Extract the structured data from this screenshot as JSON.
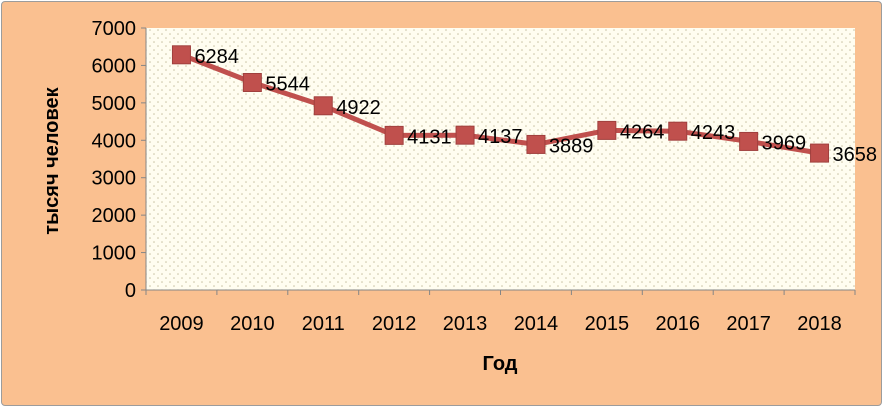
{
  "chart_data": {
    "type": "line",
    "title": "",
    "xlabel": "Год",
    "ylabel": "тысяч человек",
    "categories": [
      "2009",
      "2010",
      "2011",
      "2012",
      "2013",
      "2014",
      "2015",
      "2016",
      "2017",
      "2018"
    ],
    "series": [
      {
        "values": [
          6284,
          5544,
          4922,
          4131,
          4137,
          3889,
          4264,
          4243,
          3969,
          3658
        ],
        "data_labels": [
          "6284",
          "5544",
          "4922",
          "4131",
          "4137",
          "3889",
          "4264",
          "4243",
          "3969",
          "3658"
        ]
      }
    ],
    "ylim": [
      0,
      7000
    ],
    "yticks": [
      "0",
      "1000",
      "2000",
      "3000",
      "4000",
      "5000",
      "6000",
      "7000"
    ],
    "grid": false,
    "legend": "none",
    "colors": {
      "background": "#fac090",
      "plot_area": "#fffdf0",
      "line": "#c0504d",
      "marker": "#c0504d",
      "marker_border": "#a0403e",
      "axis": "#868686"
    },
    "marker": "square"
  }
}
